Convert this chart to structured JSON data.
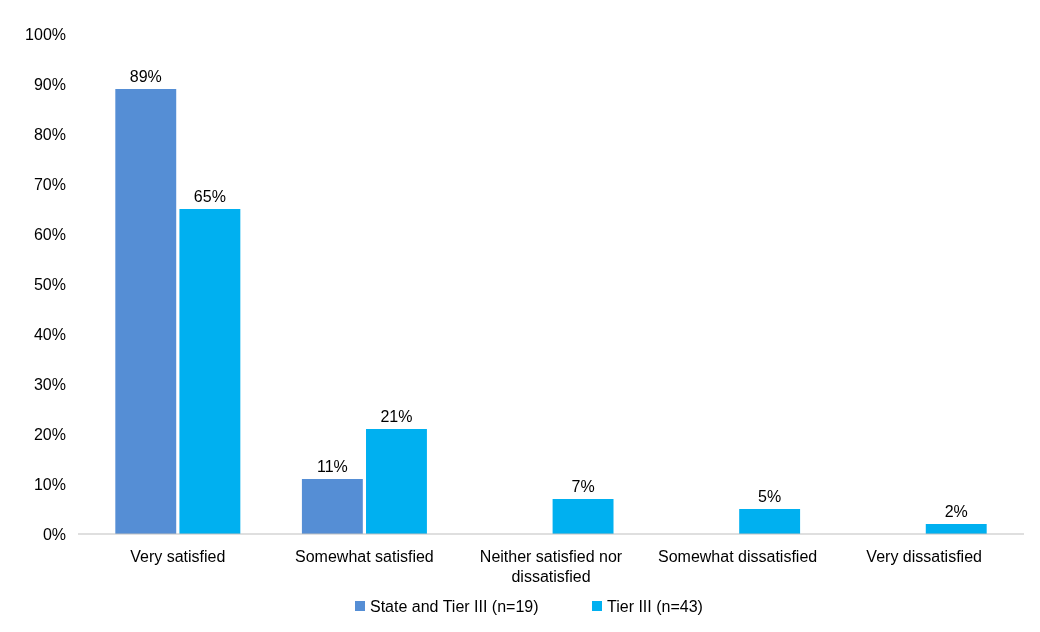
{
  "chart_data": {
    "type": "bar",
    "categories": [
      "Very satisfied",
      "Somewhat satisfied",
      "Neither satisfied nor dissatisfied",
      "Somewhat dissatisfied",
      "Very dissatisfied"
    ],
    "series": [
      {
        "name": "State and Tier III (n=19)",
        "color": "#558ed5",
        "values": [
          89,
          11,
          null,
          null,
          null
        ],
        "value_labels": [
          "89%",
          "11%",
          null,
          null,
          null
        ]
      },
      {
        "name": "Tier III (n=43)",
        "color": "#00b0f0",
        "values": [
          65,
          21,
          7,
          5,
          2
        ],
        "value_labels": [
          "65%",
          "21%",
          "7%",
          "5%",
          "2%"
        ]
      }
    ],
    "ylim": [
      0,
      100
    ],
    "yticks": [
      {
        "value": 0,
        "label": "0%"
      },
      {
        "value": 10,
        "label": "10%"
      },
      {
        "value": 20,
        "label": "20%"
      },
      {
        "value": 30,
        "label": "30%"
      },
      {
        "value": 40,
        "label": "40%"
      },
      {
        "value": 50,
        "label": "50%"
      },
      {
        "value": 60,
        "label": "60%"
      },
      {
        "value": 70,
        "label": "70%"
      },
      {
        "value": 80,
        "label": "80%"
      },
      {
        "value": 90,
        "label": "90%"
      },
      {
        "value": 100,
        "label": "100%"
      }
    ],
    "legend": "bottom"
  }
}
